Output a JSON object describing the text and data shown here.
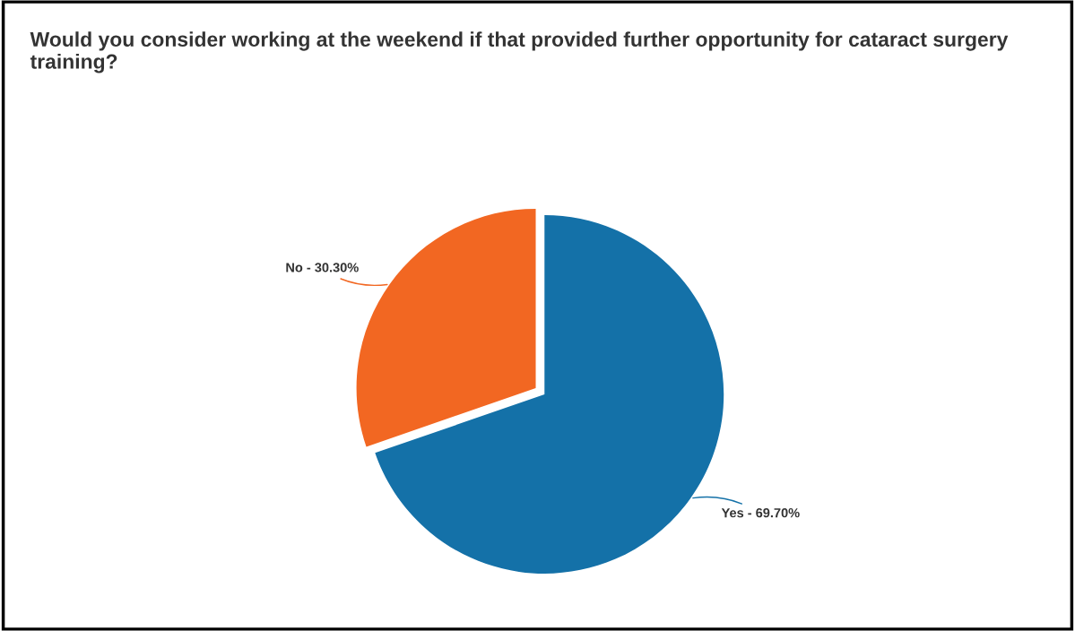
{
  "chart_data": {
    "type": "pie",
    "title": "Would you consider working at the weekend if that provided further opportunity for cataract surgery training?",
    "categories": [
      "Yes",
      "No"
    ],
    "values": [
      69.7,
      30.3
    ],
    "colors": [
      "#1471a8",
      "#f26722"
    ],
    "value_labels": [
      "69.70%",
      "30.30%"
    ],
    "legend": false
  }
}
